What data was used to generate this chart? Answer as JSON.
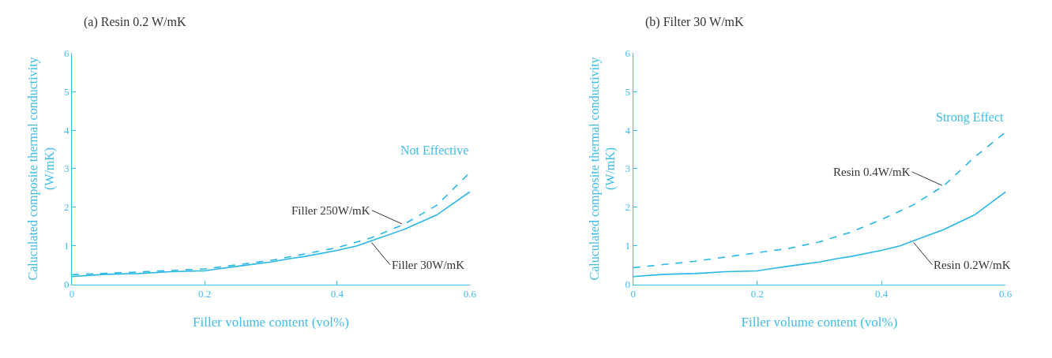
{
  "chart_data": [
    {
      "type": "line",
      "title": "(a) Resin 0.2 W/mK",
      "xlabel": "Filler volume content (vol%)",
      "ylabel": "Caluculated composite thermal conductivity (W/mK)",
      "x": [
        0,
        0.05,
        0.1,
        0.15,
        0.2,
        0.22,
        0.25,
        0.3,
        0.33,
        0.35,
        0.4,
        0.43,
        0.45,
        0.5,
        0.55,
        0.6
      ],
      "xlim": [
        0,
        0.6
      ],
      "xticks": [
        0,
        0.2,
        0.4,
        0.6
      ],
      "ylim": [
        0,
        6
      ],
      "yticks": [
        0,
        1,
        2,
        3,
        4,
        5,
        6
      ],
      "annotations": [
        "Not Effective"
      ],
      "series": [
        {
          "name": "Filler 250W/mK",
          "color": "#29b6e8",
          "line_style": "dashed",
          "x": [
            0,
            0.1,
            0.2,
            0.3,
            0.4,
            0.45,
            0.5,
            0.55,
            0.6
          ],
          "values": [
            0.25,
            0.32,
            0.4,
            0.62,
            0.95,
            1.2,
            1.55,
            2.05,
            2.9
          ]
        },
        {
          "name": "Filler 30W/mK",
          "color": "#29b6e8",
          "line_style": "solid",
          "values": [
            0.2,
            0.26,
            0.28,
            0.33,
            0.35,
            0.4,
            0.47,
            0.58,
            0.67,
            0.72,
            0.88,
            1.0,
            1.12,
            1.42,
            1.8,
            2.4
          ]
        }
      ]
    },
    {
      "type": "line",
      "title": "(b) Filter 30 W/mK",
      "xlabel": "Filler volume content (vol%)",
      "ylabel": "Caluculated composite thermal conductivity (W/mK)",
      "x": [
        0,
        0.05,
        0.1,
        0.15,
        0.2,
        0.22,
        0.25,
        0.3,
        0.33,
        0.35,
        0.4,
        0.43,
        0.45,
        0.5,
        0.55,
        0.6
      ],
      "xlim": [
        0,
        0.6
      ],
      "xticks": [
        0,
        0.2,
        0.4,
        0.6
      ],
      "ylim": [
        0,
        6
      ],
      "yticks": [
        0,
        1,
        2,
        3,
        4,
        5,
        6
      ],
      "annotations": [
        "Strong Effect"
      ],
      "series": [
        {
          "name": "Resin 0.4W/mK",
          "color": "#29b6e8",
          "line_style": "dashed",
          "x": [
            0,
            0.1,
            0.2,
            0.25,
            0.3,
            0.35,
            0.4,
            0.45,
            0.5,
            0.55,
            0.6
          ],
          "values": [
            0.43,
            0.6,
            0.82,
            0.93,
            1.1,
            1.35,
            1.68,
            2.05,
            2.55,
            3.3,
            3.95
          ]
        },
        {
          "name": "Resin 0.2W/mK",
          "color": "#29b6e8",
          "line_style": "solid",
          "values": [
            0.2,
            0.26,
            0.28,
            0.33,
            0.35,
            0.4,
            0.47,
            0.58,
            0.67,
            0.72,
            0.88,
            1.0,
            1.12,
            1.42,
            1.8,
            2.4
          ]
        }
      ]
    }
  ]
}
